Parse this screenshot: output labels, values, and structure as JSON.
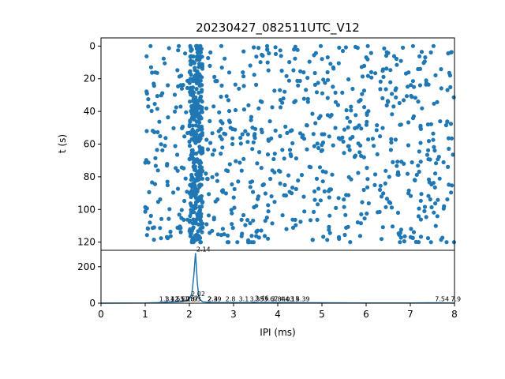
{
  "chart_data": [
    {
      "type": "scatter",
      "title": "20230427_082511UTC_V12",
      "xlabel": "",
      "ylabel": "t (s)",
      "xlim": [
        0,
        8
      ],
      "ylim": [
        125,
        -5
      ],
      "y_inverted": true,
      "xticks": [],
      "yticks": [
        0,
        20,
        40,
        60,
        80,
        100,
        120
      ],
      "ytick_labels": [
        "0",
        "20",
        "40",
        "60",
        "80",
        "100",
        "120"
      ],
      "color": "#1f77b4",
      "grid": false,
      "seed": 20230427,
      "point_count": 1100,
      "dense_band_ms": [
        2.0,
        2.3
      ]
    },
    {
      "type": "line",
      "xlabel": "IPI (ms)",
      "ylabel": "",
      "xlim": [
        0,
        8
      ],
      "ylim": [
        0,
        290
      ],
      "xticks": [
        0,
        1,
        2,
        3,
        4,
        5,
        6,
        7,
        8
      ],
      "xtick_labels": [
        "0",
        "1",
        "2",
        "3",
        "4",
        "5",
        "6",
        "7",
        "8"
      ],
      "yticks": [
        0,
        200
      ],
      "ytick_labels": [
        "0",
        "200"
      ],
      "color": "#1f77b4",
      "grid": false,
      "x": [
        0,
        1.0,
        1.3,
        1.5,
        1.7,
        1.85,
        1.95,
        2.02,
        2.06,
        2.1,
        2.14,
        2.18,
        2.22,
        2.3,
        2.5,
        3.0,
        3.4,
        3.46,
        3.55,
        4.0,
        4.15,
        5.0,
        6.0,
        7.0,
        7.54,
        7.9,
        8.0
      ],
      "values": [
        0,
        1,
        3,
        6,
        8,
        10,
        14,
        30,
        60,
        150,
        275,
        110,
        25,
        8,
        4,
        3,
        4,
        6,
        3,
        4,
        3,
        2,
        1,
        1,
        2,
        1,
        0
      ],
      "peak_labels": [
        {
          "x": 2.14,
          "y": 275,
          "text": "2.14"
        },
        {
          "x": 2.02,
          "y": 30,
          "text": "2.02"
        },
        {
          "x": 1.3,
          "y": 3,
          "text": "1.3"
        },
        {
          "x": 1.42,
          "y": 3,
          "text": "1.42"
        },
        {
          "x": 1.55,
          "y": 3,
          "text": "1.55"
        },
        {
          "x": 1.67,
          "y": 3,
          "text": "1.67"
        },
        {
          "x": 1.78,
          "y": 3,
          "text": "1.78"
        },
        {
          "x": 1.87,
          "y": 3,
          "text": "1.87"
        },
        {
          "x": 1.93,
          "y": 3,
          "text": "1.93"
        },
        {
          "x": 2.39,
          "y": 3,
          "text": "2.39"
        },
        {
          "x": 2.4,
          "y": 3,
          "text": "2.4"
        },
        {
          "x": 2.8,
          "y": 3,
          "text": "2.8"
        },
        {
          "x": 3.1,
          "y": 3,
          "text": "3.1"
        },
        {
          "x": 3.35,
          "y": 3,
          "text": "3.35"
        },
        {
          "x": 3.46,
          "y": 6,
          "text": "3.46"
        },
        {
          "x": 3.67,
          "y": 3,
          "text": "3.67"
        },
        {
          "x": 3.84,
          "y": 3,
          "text": "3.84"
        },
        {
          "x": 4.03,
          "y": 3,
          "text": "4.03"
        },
        {
          "x": 4.15,
          "y": 3,
          "text": "4.15"
        },
        {
          "x": 4.39,
          "y": 3,
          "text": "4.39"
        },
        {
          "x": 7.54,
          "y": 2,
          "text": "7.54"
        },
        {
          "x": 7.9,
          "y": 2,
          "text": "7.9"
        }
      ]
    }
  ]
}
